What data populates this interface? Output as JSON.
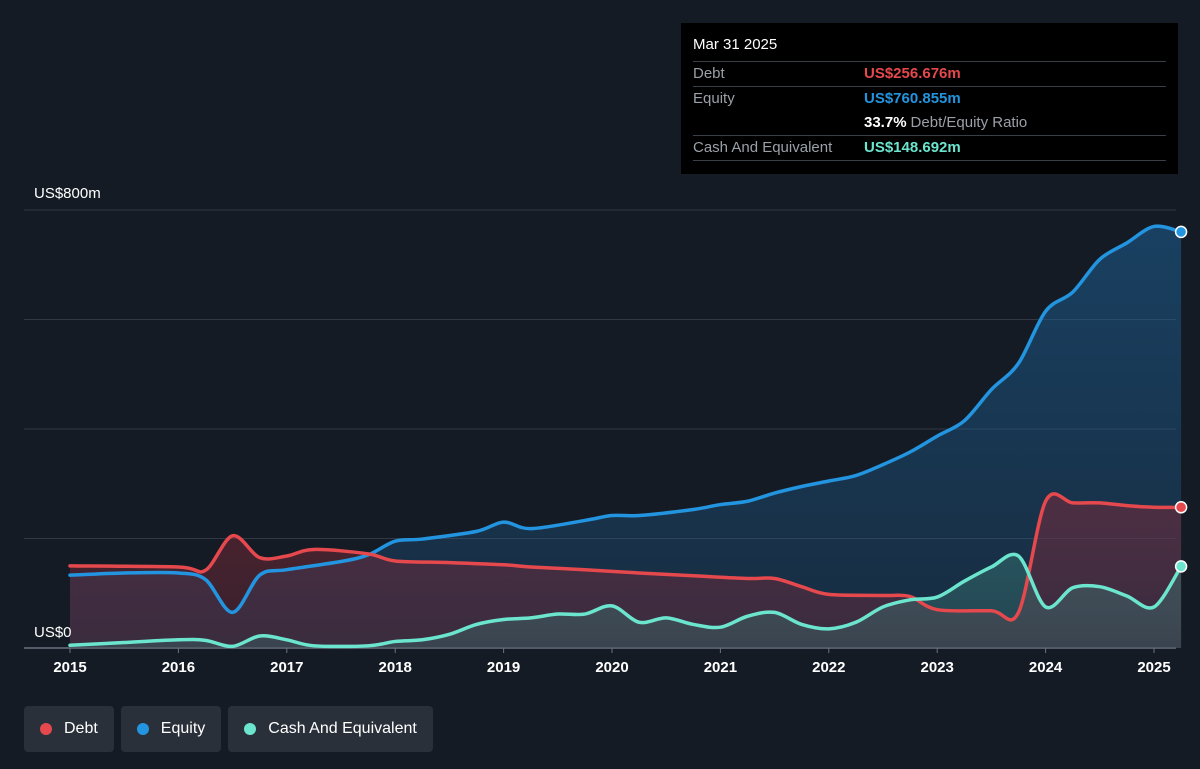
{
  "tooltip": {
    "date": "Mar 31 2025",
    "debt_label": "Debt",
    "debt_value": "US$256.676m",
    "equity_label": "Equity",
    "equity_value": "US$760.855m",
    "ratio_value": "33.7%",
    "ratio_label": "Debt/Equity Ratio",
    "cash_label": "Cash And Equivalent",
    "cash_value": "US$148.692m"
  },
  "legend": {
    "debt": "Debt",
    "equity": "Equity",
    "cash": "Cash And Equivalent"
  },
  "colors": {
    "debt": "#e5484d",
    "equity": "#2394df",
    "cash": "#6ce5cf"
  },
  "chart_data": {
    "type": "area",
    "y_unit": "US$m",
    "ylim": [
      0,
      800
    ],
    "y_tick_labels": [
      {
        "value": 800,
        "label": "US$800m"
      },
      {
        "value": 0,
        "label": "US$0"
      }
    ],
    "gridlines": [
      0,
      200,
      400,
      600,
      800
    ],
    "x_ticks": [
      2015,
      2016,
      2017,
      2018,
      2019,
      2020,
      2021,
      2022,
      2023,
      2024,
      2025
    ],
    "x_tick_labels": [
      "2015",
      "2016",
      "2017",
      "2018",
      "2019",
      "2020",
      "2021",
      "2022",
      "2023",
      "2024",
      "2025"
    ],
    "xlim": [
      2014.58,
      2025.25
    ],
    "series": [
      {
        "name": "Debt",
        "color_key": "debt",
        "x": [
          2015.0,
          2016.0,
          2016.25,
          2016.5,
          2016.75,
          2017.0,
          2017.25,
          2017.75,
          2018.0,
          2018.5,
          2019.0,
          2019.25,
          2019.75,
          2020.25,
          2020.75,
          2021.25,
          2021.5,
          2021.75,
          2022.0,
          2022.5,
          2022.75,
          2023.0,
          2023.5,
          2023.75,
          2024.0,
          2024.25,
          2024.5,
          2024.75,
          2025.0,
          2025.25
        ],
        "y": [
          150,
          148,
          142,
          205,
          165,
          168,
          180,
          172,
          159,
          156,
          152,
          148,
          143,
          137,
          132,
          127,
          127,
          112,
          98,
          96,
          94,
          70,
          68,
          65,
          268,
          265,
          265,
          260,
          257,
          257
        ]
      },
      {
        "name": "Equity",
        "color_key": "equity",
        "x": [
          2015.0,
          2015.5,
          2016.0,
          2016.25,
          2016.5,
          2016.75,
          2017.0,
          2017.5,
          2017.75,
          2018.0,
          2018.25,
          2018.75,
          2019.0,
          2019.25,
          2019.75,
          2020.0,
          2020.25,
          2020.75,
          2021.0,
          2021.25,
          2021.5,
          2021.75,
          2022.0,
          2022.25,
          2022.5,
          2022.75,
          2023.0,
          2023.25,
          2023.5,
          2023.75,
          2024.0,
          2024.25,
          2024.5,
          2024.75,
          2025.0,
          2025.25
        ],
        "y": [
          133,
          137,
          137,
          125,
          65,
          133,
          143,
          158,
          170,
          195,
          199,
          213,
          230,
          218,
          233,
          242,
          242,
          253,
          262,
          268,
          283,
          295,
          305,
          315,
          335,
          358,
          387,
          415,
          472,
          520,
          615,
          650,
          710,
          740,
          770,
          760
        ]
      },
      {
        "name": "Cash And Equivalent",
        "color_key": "cash",
        "x": [
          2015.0,
          2015.5,
          2016.0,
          2016.25,
          2016.5,
          2016.75,
          2017.0,
          2017.25,
          2017.75,
          2018.0,
          2018.25,
          2018.5,
          2018.75,
          2019.0,
          2019.25,
          2019.5,
          2019.75,
          2020.0,
          2020.25,
          2020.5,
          2020.75,
          2021.0,
          2021.25,
          2021.5,
          2021.75,
          2022.0,
          2022.25,
          2022.5,
          2022.75,
          2023.0,
          2023.25,
          2023.5,
          2023.75,
          2024.0,
          2024.25,
          2024.5,
          2024.75,
          2025.0,
          2025.25
        ],
        "y": [
          5,
          10,
          15,
          14,
          3,
          22,
          15,
          4,
          4,
          12,
          15,
          25,
          43,
          52,
          55,
          62,
          62,
          77,
          47,
          55,
          43,
          38,
          58,
          65,
          43,
          35,
          47,
          75,
          88,
          93,
          122,
          148,
          168,
          75,
          110,
          112,
          95,
          75,
          149
        ]
      }
    ]
  }
}
